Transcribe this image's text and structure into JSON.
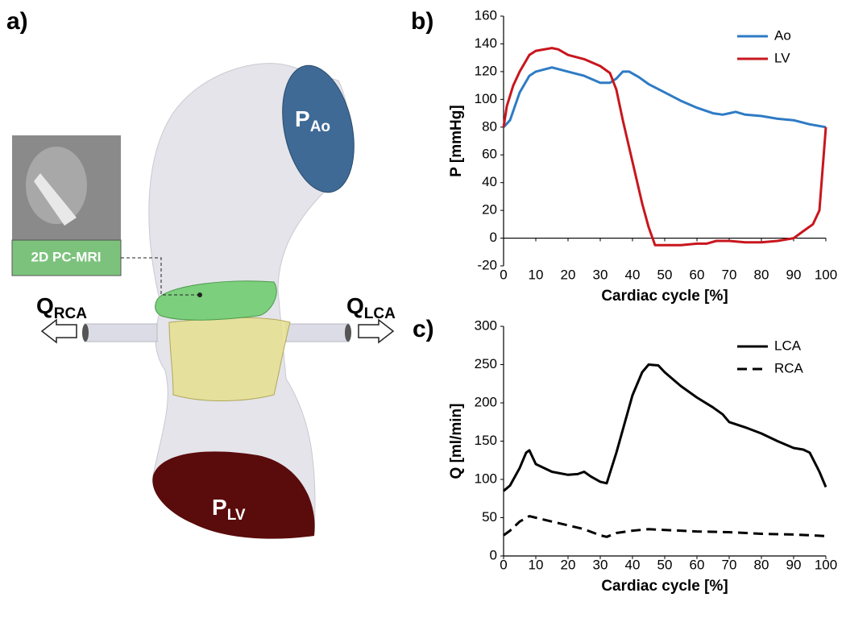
{
  "panel_labels": [
    "a)",
    "b)",
    "c)"
  ],
  "diagram": {
    "inset_label": "2D PC-MRI",
    "labels": [
      {
        "main": "P",
        "sub": "Ao"
      },
      {
        "main": "P",
        "sub": "LV"
      },
      {
        "main": "Q",
        "sub": "RCA"
      },
      {
        "main": "Q",
        "sub": "LCA"
      }
    ]
  },
  "chart_data": [
    {
      "type": "line",
      "x_label": "Cardiac cycle [%]",
      "y_label": "P [mmHg]",
      "xlim": [
        0,
        100
      ],
      "xticks": [
        0,
        10,
        20,
        30,
        40,
        50,
        60,
        70,
        80,
        90,
        100
      ],
      "ylim": [
        -20,
        160
      ],
      "yticks": [
        -20,
        0,
        20,
        40,
        60,
        80,
        100,
        120,
        140,
        160
      ],
      "legend": "top-right",
      "series": [
        {
          "name": "Ao",
          "color": "#2e7bc4",
          "linestyle": "solid",
          "x": [
            0,
            2,
            5,
            8,
            10,
            15,
            20,
            25,
            30,
            33,
            35,
            37,
            39,
            42,
            45,
            50,
            55,
            60,
            65,
            68,
            70,
            72,
            75,
            80,
            85,
            90,
            95,
            100
          ],
          "values": [
            80,
            85,
            105,
            117,
            120,
            123,
            120,
            117,
            112,
            112,
            115,
            120,
            120,
            116,
            111,
            105,
            99,
            94,
            90,
            89,
            90,
            91,
            89,
            88,
            86,
            85,
            82,
            80
          ]
        },
        {
          "name": "LV",
          "color": "#c8161d",
          "linestyle": "solid",
          "x": [
            0,
            1,
            3,
            5,
            8,
            10,
            15,
            17,
            20,
            25,
            30,
            33,
            35,
            37,
            40,
            43,
            45,
            47,
            50,
            55,
            60,
            63,
            66,
            70,
            75,
            80,
            85,
            90,
            93,
            96,
            98,
            99,
            100
          ],
          "values": [
            80,
            95,
            110,
            120,
            132,
            135,
            137,
            136,
            132,
            129,
            124,
            119,
            107,
            85,
            55,
            25,
            8,
            -5,
            -5,
            -5,
            -4,
            -4,
            -2,
            -2,
            -3,
            -3,
            -2,
            0,
            5,
            10,
            20,
            50,
            80
          ]
        }
      ]
    },
    {
      "type": "line",
      "x_label": "Cardiac cycle [%]",
      "y_label": "Q [ml/min]",
      "xlim": [
        0,
        100
      ],
      "xticks": [
        0,
        10,
        20,
        30,
        40,
        50,
        60,
        70,
        80,
        90,
        100
      ],
      "ylim": [
        0,
        300
      ],
      "yticks": [
        0,
        50,
        100,
        150,
        200,
        250,
        300
      ],
      "legend": "top-right",
      "series": [
        {
          "name": "LCA",
          "color": "#000000",
          "linestyle": "solid",
          "x": [
            0,
            2,
            5,
            7,
            8,
            10,
            15,
            20,
            23,
            25,
            27,
            30,
            32,
            35,
            38,
            40,
            43,
            45,
            48,
            50,
            55,
            60,
            65,
            68,
            70,
            75,
            80,
            85,
            90,
            93,
            95,
            98,
            100
          ],
          "values": [
            85,
            92,
            115,
            135,
            138,
            120,
            110,
            106,
            107,
            110,
            104,
            97,
            95,
            135,
            180,
            210,
            240,
            250,
            249,
            240,
            222,
            207,
            194,
            185,
            175,
            168,
            160,
            150,
            141,
            139,
            135,
            110,
            90
          ]
        },
        {
          "name": "RCA",
          "color": "#000000",
          "linestyle": "dashed",
          "x": [
            0,
            2,
            5,
            8,
            10,
            15,
            20,
            25,
            30,
            32,
            35,
            40,
            45,
            50,
            60,
            70,
            80,
            90,
            100
          ],
          "values": [
            27,
            33,
            45,
            52,
            50,
            45,
            40,
            35,
            27,
            25,
            30,
            33,
            35,
            34,
            32,
            31,
            29,
            28,
            26
          ]
        }
      ]
    }
  ]
}
